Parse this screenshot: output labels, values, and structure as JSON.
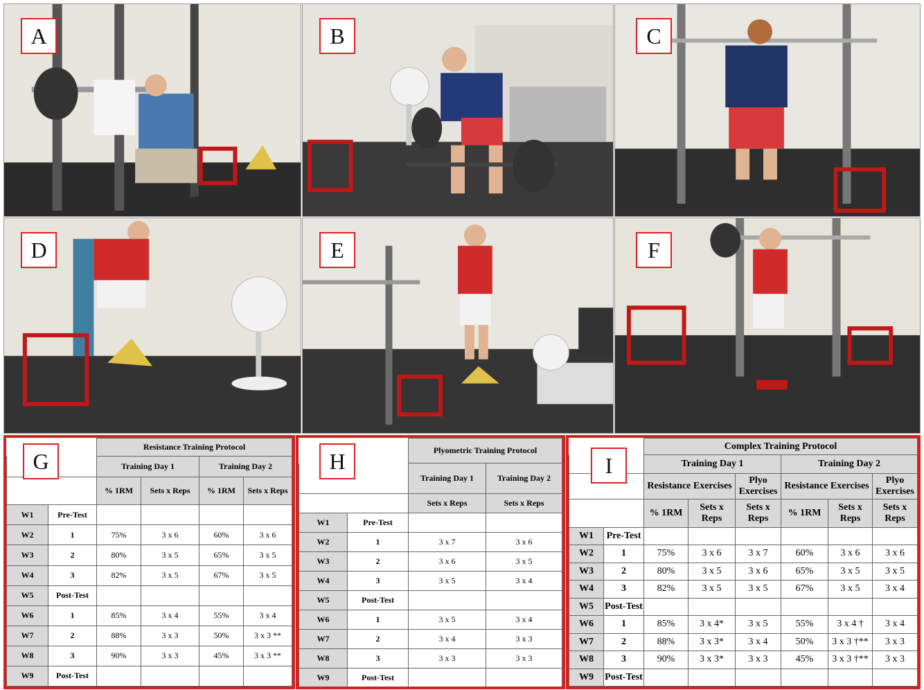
{
  "panels": {
    "A": "A",
    "B": "B",
    "C": "C",
    "D": "D",
    "E": "E",
    "F": "F",
    "G": "G",
    "H": "H",
    "I": "I"
  },
  "resistance": {
    "title": "Resistance Training Protocol",
    "day1": "Training Day 1",
    "day2": "Training Day 2",
    "c1": "% 1RM",
    "c2": "Sets x Reps",
    "c3": "% 1RM",
    "c4": "Sets x Reps",
    "rows": [
      [
        "W1",
        "Pre-Test",
        "",
        "",
        "",
        ""
      ],
      [
        "W2",
        "1",
        "75%",
        "3 x 6",
        "60%",
        "3 x 6"
      ],
      [
        "W3",
        "2",
        "80%",
        "3 x 5",
        "65%",
        "3 x 5"
      ],
      [
        "W4",
        "3",
        "82%",
        "3 x 5",
        "67%",
        "3 x 5"
      ],
      [
        "W5",
        "Post-Test",
        "",
        "",
        "",
        ""
      ],
      [
        "W6",
        "1",
        "85%",
        "3 x 4",
        "55%",
        "3 x 4"
      ],
      [
        "W7",
        "2",
        "88%",
        "3 x 3",
        "50%",
        "3 x 3 **"
      ],
      [
        "W8",
        "3",
        "90%",
        "3 x 3",
        "45%",
        "3 x 3 **"
      ],
      [
        "W9",
        "Post-Test",
        "",
        "",
        "",
        ""
      ]
    ]
  },
  "plyometric": {
    "title": "Plyometric Training Protocol",
    "day1": "Training Day 1",
    "day2": "Training Day 2",
    "c1": "Sets x Reps",
    "c2": "Sets x Reps",
    "rows": [
      [
        "W1",
        "Pre-Test",
        "",
        ""
      ],
      [
        "W2",
        "1",
        "3 x 7",
        "3 x 6"
      ],
      [
        "W3",
        "2",
        "3 x 6",
        "3 x 5"
      ],
      [
        "W4",
        "3",
        "3 x 5",
        "3 x 4"
      ],
      [
        "W5",
        "Post-Test",
        "",
        ""
      ],
      [
        "W6",
        "1",
        "3 x 5",
        "3 x 4"
      ],
      [
        "W7",
        "2",
        "3 x 4",
        "3 x 3"
      ],
      [
        "W8",
        "3",
        "3 x 3",
        "3 x 3"
      ],
      [
        "W9",
        "Post-Test",
        "",
        ""
      ]
    ]
  },
  "complex": {
    "title": "Complex Training Protocol",
    "day1": "Training Day 1",
    "day2": "Training Day 2",
    "res1": "Resistance Exercises",
    "plyo1": "Plyo Exercises",
    "res2": "Resistance Exercises",
    "plyo2": "Plyo Exercises",
    "c1": "% 1RM",
    "c2": "Sets x Reps",
    "c3": "Sets x Reps",
    "c4": "% 1RM",
    "c5": "Sets x Reps",
    "c6": "Sets x Reps",
    "rows": [
      [
        "W1",
        "Pre-Test",
        "",
        "",
        "",
        "",
        "",
        ""
      ],
      [
        "W2",
        "1",
        "75%",
        "3 x 6",
        "3 x 7",
        "60%",
        "3 x 6",
        "3 x 6"
      ],
      [
        "W3",
        "2",
        "80%",
        "3 x 5",
        "3 x 6",
        "65%",
        "3 x 5",
        "3 x 5"
      ],
      [
        "W4",
        "3",
        "82%",
        "3 x 5",
        "3 x 5",
        "67%",
        "3 x 5",
        "3 x 4"
      ],
      [
        "W5",
        "Post-Test",
        "",
        "",
        "",
        "",
        "",
        ""
      ],
      [
        "W6",
        "1",
        "85%",
        "3 x 4*",
        "3 x 5",
        "55%",
        "3 x 4 †",
        "3 x 4"
      ],
      [
        "W7",
        "2",
        "88%",
        "3 x 3*",
        "3 x 4",
        "50%",
        "3 x 3 †**",
        "3 x 3"
      ],
      [
        "W8",
        "3",
        "90%",
        "3 x 3*",
        "3 x 3",
        "45%",
        "3 x 3 †**",
        "3 x 3"
      ],
      [
        "W9",
        "Post-Test",
        "",
        "",
        "",
        "",
        "",
        ""
      ]
    ]
  }
}
